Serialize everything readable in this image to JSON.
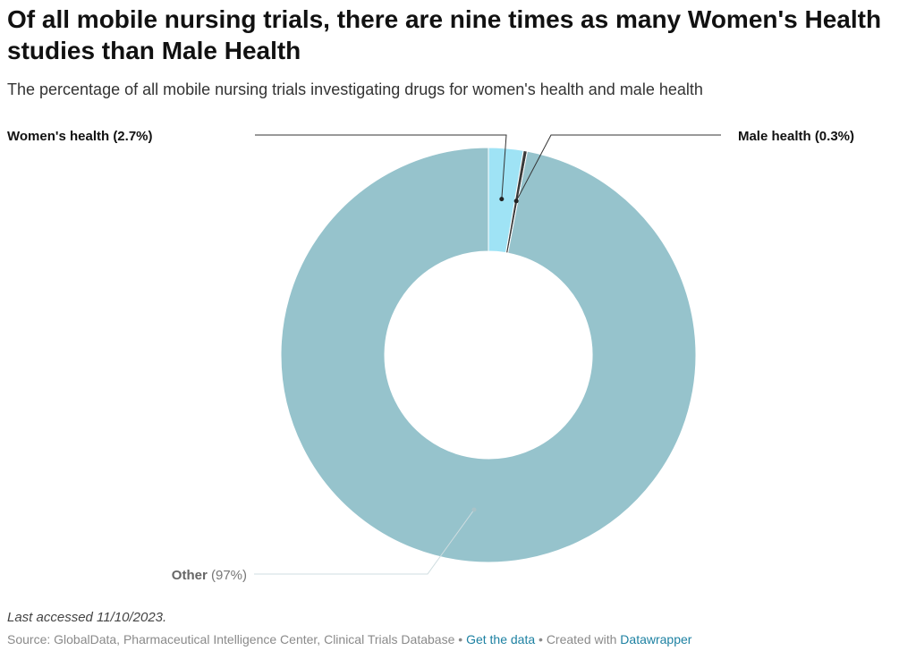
{
  "header": {
    "title": "Of all mobile nursing trials, there are nine times as many Women's Health studies than Male Health",
    "subtitle": "The percentage of all mobile nursing trials investigating drugs for women's health and male health"
  },
  "chart_data": {
    "type": "pie",
    "variant": "donut",
    "slices": [
      {
        "name": "Women's health",
        "value": 2.7,
        "value_label": "(2.7%)",
        "color": "#9fe3f5",
        "label_bold": true
      },
      {
        "name": "Male health",
        "value": 0.3,
        "value_label": "(0.3%)",
        "color": "#3a3a3a",
        "label_bold": true
      },
      {
        "name": "Other",
        "value": 97,
        "value_label": "(97%)",
        "color": "#96c3cc",
        "label_bold": false
      }
    ]
  },
  "footer": {
    "note": "Last accessed 11/10/2023.",
    "source": "Source: GlobalData, Pharmaceutical Intelligence Center, Clinical Trials Database",
    "sep": " • ",
    "get_data": "Get the data",
    "created_with": "Created with",
    "tool": "Datawrapper"
  }
}
